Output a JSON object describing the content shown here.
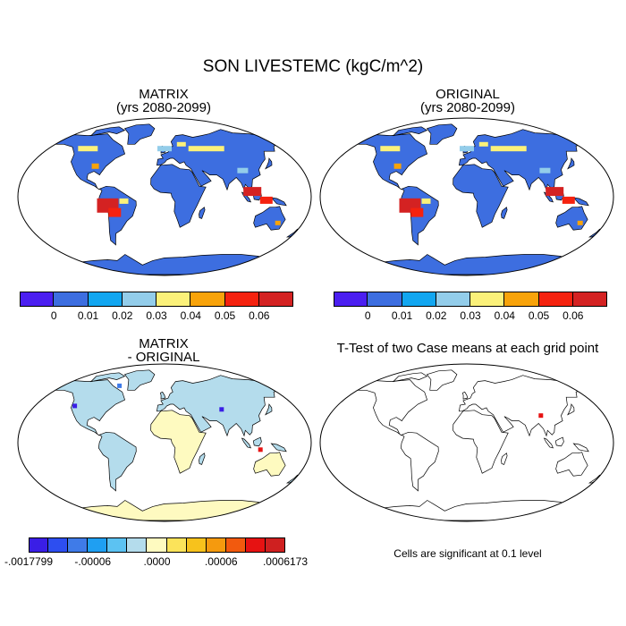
{
  "main_title": "SON LIVESTEMC (kgC/m^2)",
  "panels": [
    {
      "title": "MATRIX\n(yrs 2080-2099)",
      "colorbar": {
        "colors": [
          "#4b1ff0",
          "#3d6ee0",
          "#12a6f0",
          "#93cdea",
          "#fbf17a",
          "#f8a30a",
          "#f5220f",
          "#d42222"
        ],
        "labels": [
          "0",
          "0.01",
          "0.02",
          "0.03",
          "0.04",
          "0.05",
          "0.06"
        ]
      }
    },
    {
      "title": "ORIGINAL\n(yrs 2080-2099)",
      "colorbar": {
        "colors": [
          "#4b1ff0",
          "#3d6ee0",
          "#12a6f0",
          "#93cdea",
          "#fbf17a",
          "#f8a30a",
          "#f5220f",
          "#d42222"
        ],
        "labels": [
          "0",
          "0.01",
          "0.02",
          "0.03",
          "0.04",
          "0.05",
          "0.06"
        ]
      }
    },
    {
      "title": "MATRIX\n- ORIGINAL",
      "colorbar": {
        "colors": [
          "#3a1ee6",
          "#2d4ef0",
          "#3f7be8",
          "#1f9ff2",
          "#5cc2f2",
          "#b4dcec",
          "#fefac0",
          "#fbe35a",
          "#f7c21c",
          "#f59a0e",
          "#f25a0e",
          "#e61212",
          "#cf2020"
        ],
        "labels": [
          "-.0017799",
          "-.00006",
          ".0000",
          ".00006",
          ".0006173"
        ]
      }
    },
    {
      "title": "T-Test of two Case means at each grid point",
      "note": "Cells are significant at 0.1 level"
    }
  ]
}
